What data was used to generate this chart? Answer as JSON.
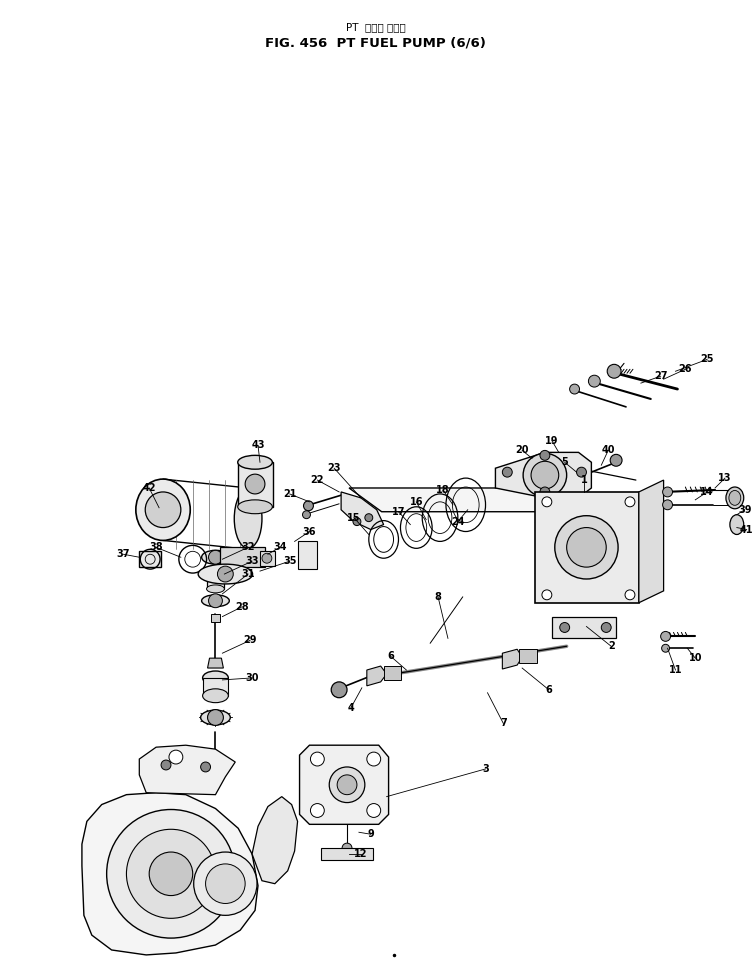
{
  "title_jp": "PT  フエル ポンプ",
  "title_en": "FIG. 456  PT FUEL PUMP (6/6)",
  "bg": "#ffffff",
  "lc": "#000000",
  "fw": 7.55,
  "fh": 9.74
}
